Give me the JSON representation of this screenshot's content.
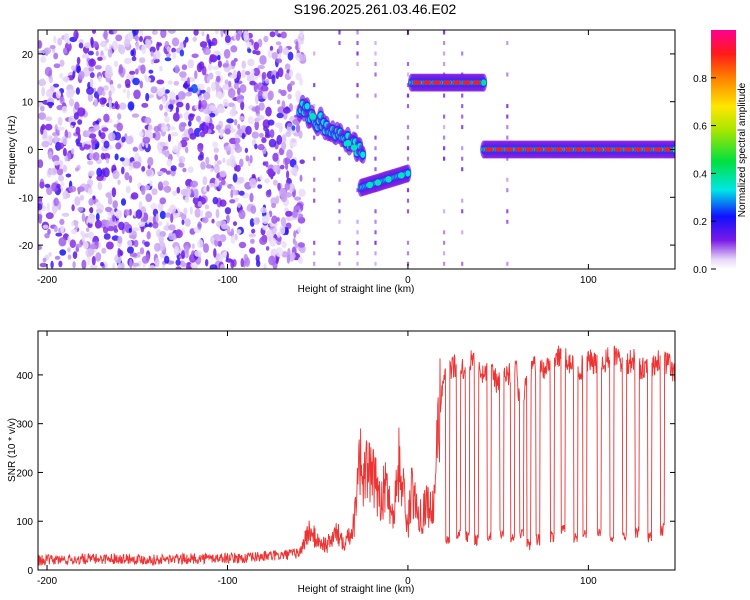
{
  "title": "S196.2025.261.03.46.E02",
  "chart_data": [
    {
      "type": "heatmap",
      "xlabel": "Height of straight line (km)",
      "ylabel": "Frequency (Hz)",
      "xlim": [
        -205,
        148
      ],
      "ylim": [
        -25,
        25
      ],
      "xticks": [
        -200,
        -100,
        0,
        100
      ],
      "yticks": [
        -20,
        -10,
        0,
        10,
        20
      ],
      "colorbar": {
        "label": "Normalized spectral amplitude",
        "range": [
          0.0,
          1.0
        ],
        "ticks": [
          0.0,
          0.2,
          0.4,
          0.6,
          0.8
        ],
        "tick_labels": [
          "0.0",
          "0.2",
          "0.4",
          "0.6",
          "0.8"
        ],
        "colormap": "rainbow"
      },
      "features": [
        {
          "x": [
            -60,
            -25
          ],
          "y": [
            9,
            -1
          ],
          "amplitude": 0.35,
          "kind": "descending-streak"
        },
        {
          "x": [
            -26,
            0
          ],
          "y": [
            -8,
            -5
          ],
          "amplitude": 0.4,
          "kind": "segment"
        },
        {
          "x": [
            2,
            42
          ],
          "y": [
            14,
            14
          ],
          "amplitude": 0.9,
          "kind": "segment"
        },
        {
          "x": [
            42,
            148
          ],
          "y": [
            0,
            0
          ],
          "amplitude": 0.9,
          "kind": "segment"
        }
      ],
      "noise_region": {
        "x": [
          -205,
          -58
        ],
        "amplitude": 0.15
      }
    },
    {
      "type": "line",
      "xlabel": "Height of straight line (km)",
      "ylabel": "SNR (10 * v/v)",
      "xlim": [
        -205,
        148
      ],
      "ylim": [
        0,
        490
      ],
      "xticks": [
        -200,
        -100,
        0,
        100
      ],
      "yticks": [
        0,
        100,
        200,
        300,
        400
      ],
      "series": [
        {
          "color": "#ee3333",
          "x": [
            -205,
            -180,
            -160,
            -140,
            -120,
            -100,
            -90,
            -80,
            -70,
            -60,
            -55,
            -50,
            -45,
            -40,
            -35,
            -30,
            -27,
            -25,
            -22,
            -20,
            -15,
            -12,
            -8,
            -5,
            -2,
            0,
            2,
            5,
            8,
            10,
            14,
            17,
            19,
            22,
            25,
            30,
            35,
            40,
            45,
            50,
            55,
            60,
            62,
            66,
            70,
            75,
            80,
            85,
            90,
            95,
            100,
            105,
            110,
            115,
            120,
            125,
            130,
            135,
            140,
            145,
            148
          ],
          "y": [
            20,
            22,
            24,
            21,
            23,
            25,
            24,
            28,
            30,
            35,
            80,
            60,
            50,
            75,
            60,
            90,
            250,
            180,
            210,
            190,
            150,
            170,
            110,
            220,
            150,
            90,
            160,
            130,
            110,
            140,
            120,
            300,
            380,
            400,
            420,
            410,
            430,
            400,
            410,
            380,
            400,
            420,
            330,
            380,
            420,
            410,
            430,
            440,
            420,
            410,
            430,
            420,
            430,
            440,
            420,
            430,
            410,
            420,
            430,
            420,
            400
          ],
          "dips": [
            {
              "x": 22,
              "y": 50
            },
            {
              "x": 28,
              "y": 60
            },
            {
              "x": 33,
              "y": 55
            },
            {
              "x": 38,
              "y": 50
            },
            {
              "x": 45,
              "y": 55
            },
            {
              "x": 52,
              "y": 60
            },
            {
              "x": 58,
              "y": 50
            },
            {
              "x": 63,
              "y": 60
            },
            {
              "x": 67,
              "y": 40
            },
            {
              "x": 72,
              "y": 50
            },
            {
              "x": 80,
              "y": 55
            },
            {
              "x": 86,
              "y": 70
            },
            {
              "x": 93,
              "y": 55
            },
            {
              "x": 98,
              "y": 65
            },
            {
              "x": 106,
              "y": 60
            },
            {
              "x": 113,
              "y": 55
            },
            {
              "x": 120,
              "y": 60
            },
            {
              "x": 127,
              "y": 65
            },
            {
              "x": 134,
              "y": 55
            },
            {
              "x": 141,
              "y": 70
            }
          ]
        }
      ]
    }
  ]
}
